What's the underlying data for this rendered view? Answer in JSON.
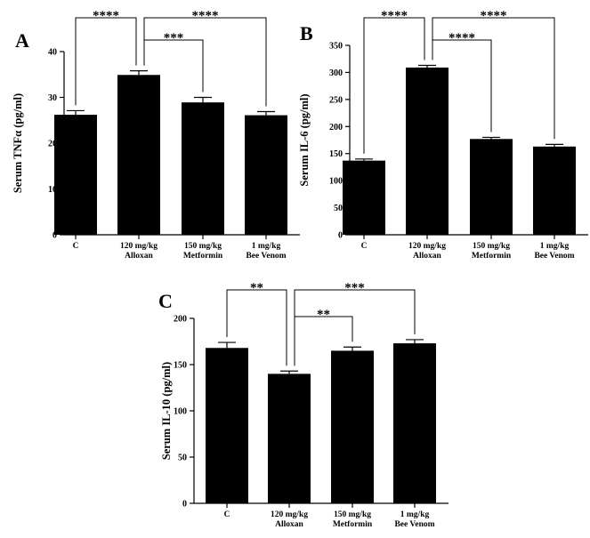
{
  "chart_data": [
    {
      "type": "bar",
      "panel": "A",
      "ylabel": "Serum TNFα (pg/ml)",
      "ylim": [
        0,
        40
      ],
      "yticks": [
        0,
        10,
        20,
        30,
        40
      ],
      "categories": [
        [
          "C"
        ],
        [
          "120 mg/kg",
          "Alloxan"
        ],
        [
          "150 mg/kg",
          "Metformin"
        ],
        [
          "1 mg/kg",
          "Bee Venom"
        ]
      ],
      "values": [
        26.2,
        34.9,
        28.9,
        26.1
      ],
      "errors": [
        0.9,
        0.9,
        1.1,
        0.8
      ],
      "bar_color": "#000000",
      "significance": [
        {
          "from": 0,
          "to": 1,
          "label": "****"
        },
        {
          "from": 1,
          "to": 2,
          "label": "***"
        },
        {
          "from": 1,
          "to": 3,
          "label": "****"
        }
      ]
    },
    {
      "type": "bar",
      "panel": "B",
      "ylabel": "Serum IL-6 (pg/ml)",
      "ylim": [
        0,
        350
      ],
      "yticks": [
        0,
        50,
        100,
        150,
        200,
        250,
        300,
        350
      ],
      "categories": [
        [
          "C"
        ],
        [
          "120 mg/kg",
          "Alloxan"
        ],
        [
          "150 mg/kg",
          "Metformin"
        ],
        [
          "1 mg/kg",
          "Bee Venom"
        ]
      ],
      "values": [
        137,
        309,
        177,
        163
      ],
      "errors": [
        3,
        4,
        3,
        4
      ],
      "bar_color": "#000000",
      "significance": [
        {
          "from": 0,
          "to": 1,
          "label": "****"
        },
        {
          "from": 1,
          "to": 2,
          "label": "****"
        },
        {
          "from": 1,
          "to": 3,
          "label": "****"
        }
      ]
    },
    {
      "type": "bar",
      "panel": "C",
      "ylabel": "Serum IL-10 (pg/ml)",
      "ylim": [
        0,
        200
      ],
      "yticks": [
        0,
        50,
        100,
        150,
        200
      ],
      "categories": [
        [
          "C"
        ],
        [
          "120 mg/kg",
          "Alloxan"
        ],
        [
          "150 mg/kg",
          "Metformin"
        ],
        [
          "1 mg/kg",
          "Bee Venom"
        ]
      ],
      "values": [
        168,
        140,
        165,
        173
      ],
      "errors": [
        6,
        3,
        4,
        4
      ],
      "bar_color": "#000000",
      "significance": [
        {
          "from": 0,
          "to": 1,
          "label": "**"
        },
        {
          "from": 1,
          "to": 2,
          "label": "**"
        },
        {
          "from": 1,
          "to": 3,
          "label": "***"
        }
      ]
    }
  ]
}
